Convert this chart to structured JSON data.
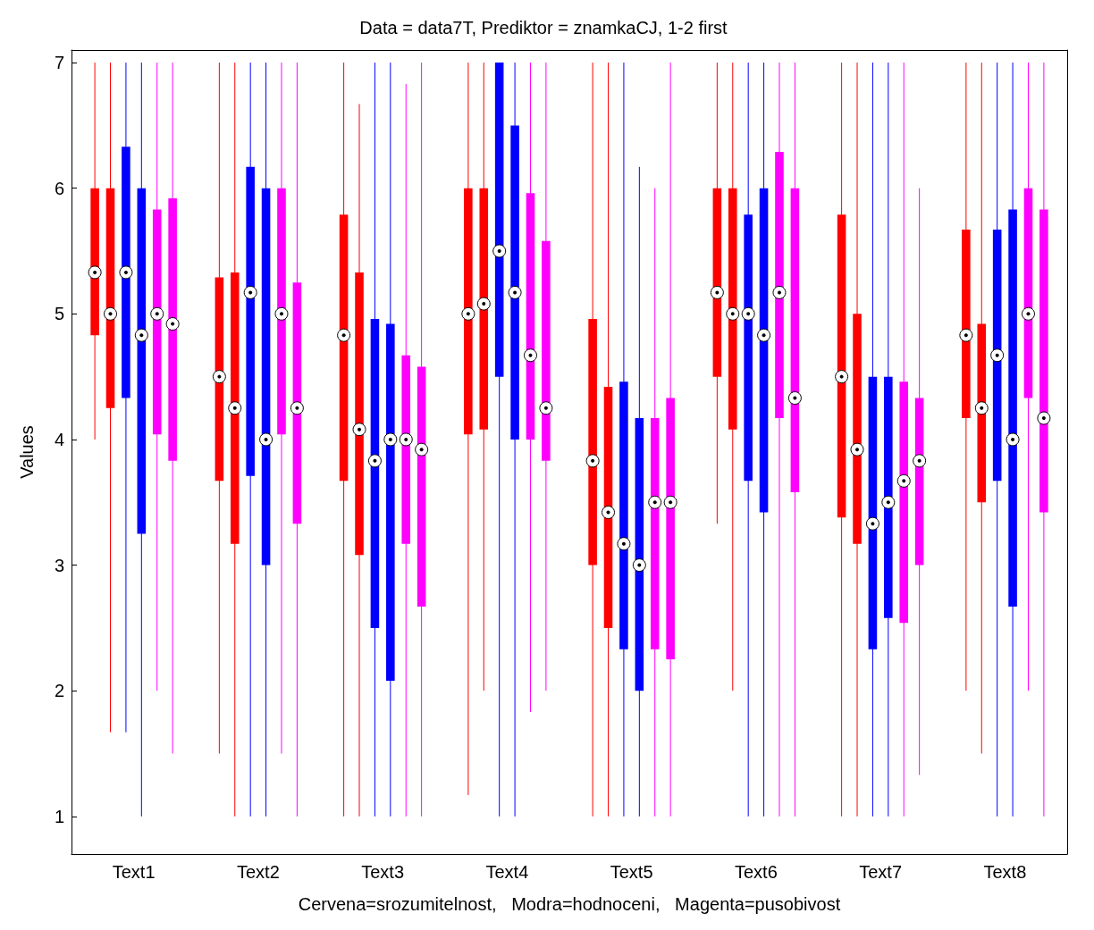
{
  "chart_data": {
    "type": "box",
    "title": "Data = data7T, Prediktor = znamkaCJ, 1-2 first",
    "ylabel": "Values",
    "xlabel": "Cervena=srozumitelnost,   Modra=hodnoceni,   Magenta=pusobivost",
    "categories": [
      "Text1",
      "Text2",
      "Text3",
      "Text4",
      "Text5",
      "Text6",
      "Text7",
      "Text8"
    ],
    "ylim": [
      0.7,
      7.1
    ],
    "yticks": [
      1,
      2,
      3,
      4,
      5,
      6,
      7
    ],
    "grid": false,
    "series": [
      {
        "color": "#ff0000",
        "boxes": [
          {
            "low": 4,
            "q1": 4.83,
            "median": 5.33,
            "q3": 6,
            "high": 7
          },
          {
            "low": 1.5,
            "q1": 3.67,
            "median": 4.5,
            "q3": 5.29,
            "high": 7
          },
          {
            "low": 1,
            "q1": 3.67,
            "median": 4.83,
            "q3": 5.79,
            "high": 7
          },
          {
            "low": 1.17,
            "q1": 4.04,
            "median": 5,
            "q3": 6,
            "high": 7
          },
          {
            "low": 1,
            "q1": 3,
            "median": 3.83,
            "q3": 4.96,
            "high": 7
          },
          {
            "low": 3.33,
            "q1": 4.5,
            "median": 5.17,
            "q3": 6,
            "high": 7
          },
          {
            "low": 1,
            "q1": 3.38,
            "median": 4.5,
            "q3": 5.79,
            "high": 7
          },
          {
            "low": 2,
            "q1": 4.17,
            "median": 4.83,
            "q3": 5.67,
            "high": 7
          }
        ]
      },
      {
        "color": "#ff0000",
        "boxes": [
          {
            "low": 1.67,
            "q1": 4.25,
            "median": 5,
            "q3": 6,
            "high": 7
          },
          {
            "low": 1,
            "q1": 3.17,
            "median": 4.25,
            "q3": 5.33,
            "high": 7
          },
          {
            "low": 1,
            "q1": 3.08,
            "median": 4.08,
            "q3": 5.33,
            "high": 6.67
          },
          {
            "low": 2,
            "q1": 4.08,
            "median": 5.08,
            "q3": 6,
            "high": 7
          },
          {
            "low": 1,
            "q1": 2.5,
            "median": 3.42,
            "q3": 4.42,
            "high": 7
          },
          {
            "low": 2,
            "q1": 4.08,
            "median": 5,
            "q3": 6,
            "high": 7
          },
          {
            "low": 1,
            "q1": 3.17,
            "median": 3.92,
            "q3": 5,
            "high": 7
          },
          {
            "low": 1.5,
            "q1": 3.5,
            "median": 4.25,
            "q3": 4.92,
            "high": 7
          }
        ]
      },
      {
        "color": "#0000ff",
        "boxes": [
          {
            "low": 1.67,
            "q1": 4.33,
            "median": 5.33,
            "q3": 6.33,
            "high": 7
          },
          {
            "low": 1,
            "q1": 3.71,
            "median": 5.17,
            "q3": 6.17,
            "high": 7
          },
          {
            "low": 1,
            "q1": 2.5,
            "median": 3.83,
            "q3": 4.96,
            "high": 7
          },
          {
            "low": 1,
            "q1": 4.5,
            "median": 5.5,
            "q3": 7,
            "high": 7
          },
          {
            "low": 1,
            "q1": 2.33,
            "median": 3.17,
            "q3": 4.46,
            "high": 7
          },
          {
            "low": 1,
            "q1": 3.67,
            "median": 5,
            "q3": 5.79,
            "high": 7
          },
          {
            "low": 1,
            "q1": 2.33,
            "median": 3.33,
            "q3": 4.5,
            "high": 7
          },
          {
            "low": 1,
            "q1": 3.67,
            "median": 4.67,
            "q3": 5.67,
            "high": 7
          }
        ]
      },
      {
        "color": "#0000ff",
        "boxes": [
          {
            "low": 1,
            "q1": 3.25,
            "median": 4.83,
            "q3": 6,
            "high": 7
          },
          {
            "low": 1,
            "q1": 3,
            "median": 4,
            "q3": 6,
            "high": 7
          },
          {
            "low": 1,
            "q1": 2.08,
            "median": 4,
            "q3": 4.92,
            "high": 7
          },
          {
            "low": 1,
            "q1": 4,
            "median": 5.17,
            "q3": 6.5,
            "high": 7
          },
          {
            "low": 1,
            "q1": 2,
            "median": 3,
            "q3": 4.17,
            "high": 6.17
          },
          {
            "low": 1,
            "q1": 3.42,
            "median": 4.83,
            "q3": 6,
            "high": 7
          },
          {
            "low": 1,
            "q1": 2.58,
            "median": 3.5,
            "q3": 4.5,
            "high": 7
          },
          {
            "low": 1,
            "q1": 2.67,
            "median": 4,
            "q3": 5.83,
            "high": 7
          }
        ]
      },
      {
        "color": "#ff00ff",
        "boxes": [
          {
            "low": 2,
            "q1": 4.04,
            "median": 5,
            "q3": 5.83,
            "high": 7
          },
          {
            "low": 1.5,
            "q1": 4.04,
            "median": 5,
            "q3": 6,
            "high": 7
          },
          {
            "low": 1,
            "q1": 3.17,
            "median": 4,
            "q3": 4.67,
            "high": 6.83
          },
          {
            "low": 1.83,
            "q1": 4,
            "median": 4.67,
            "q3": 5.96,
            "high": 7
          },
          {
            "low": 1,
            "q1": 2.33,
            "median": 3.5,
            "q3": 4.17,
            "high": 6
          },
          {
            "low": 1,
            "q1": 4.17,
            "median": 5.17,
            "q3": 6.29,
            "high": 7
          },
          {
            "low": 1,
            "q1": 2.54,
            "median": 3.67,
            "q3": 4.46,
            "high": 7
          },
          {
            "low": 2,
            "q1": 4.33,
            "median": 5,
            "q3": 6,
            "high": 7
          }
        ]
      },
      {
        "color": "#ff00ff",
        "boxes": [
          {
            "low": 1.5,
            "q1": 3.83,
            "median": 4.92,
            "q3": 5.92,
            "high": 7
          },
          {
            "low": 1,
            "q1": 3.33,
            "median": 4.25,
            "q3": 5.25,
            "high": 7
          },
          {
            "low": 1,
            "q1": 2.67,
            "median": 3.92,
            "q3": 4.58,
            "high": 7
          },
          {
            "low": 2,
            "q1": 3.83,
            "median": 4.25,
            "q3": 5.58,
            "high": 7
          },
          {
            "low": 1,
            "q1": 2.25,
            "median": 3.5,
            "q3": 4.33,
            "high": 7
          },
          {
            "low": 1,
            "q1": 3.58,
            "median": 4.33,
            "q3": 6,
            "high": 7
          },
          {
            "low": 1.33,
            "q1": 3,
            "median": 3.83,
            "q3": 4.33,
            "high": 6
          },
          {
            "low": 1,
            "q1": 3.42,
            "median": 4.17,
            "q3": 5.83,
            "high": 7
          }
        ]
      }
    ]
  }
}
